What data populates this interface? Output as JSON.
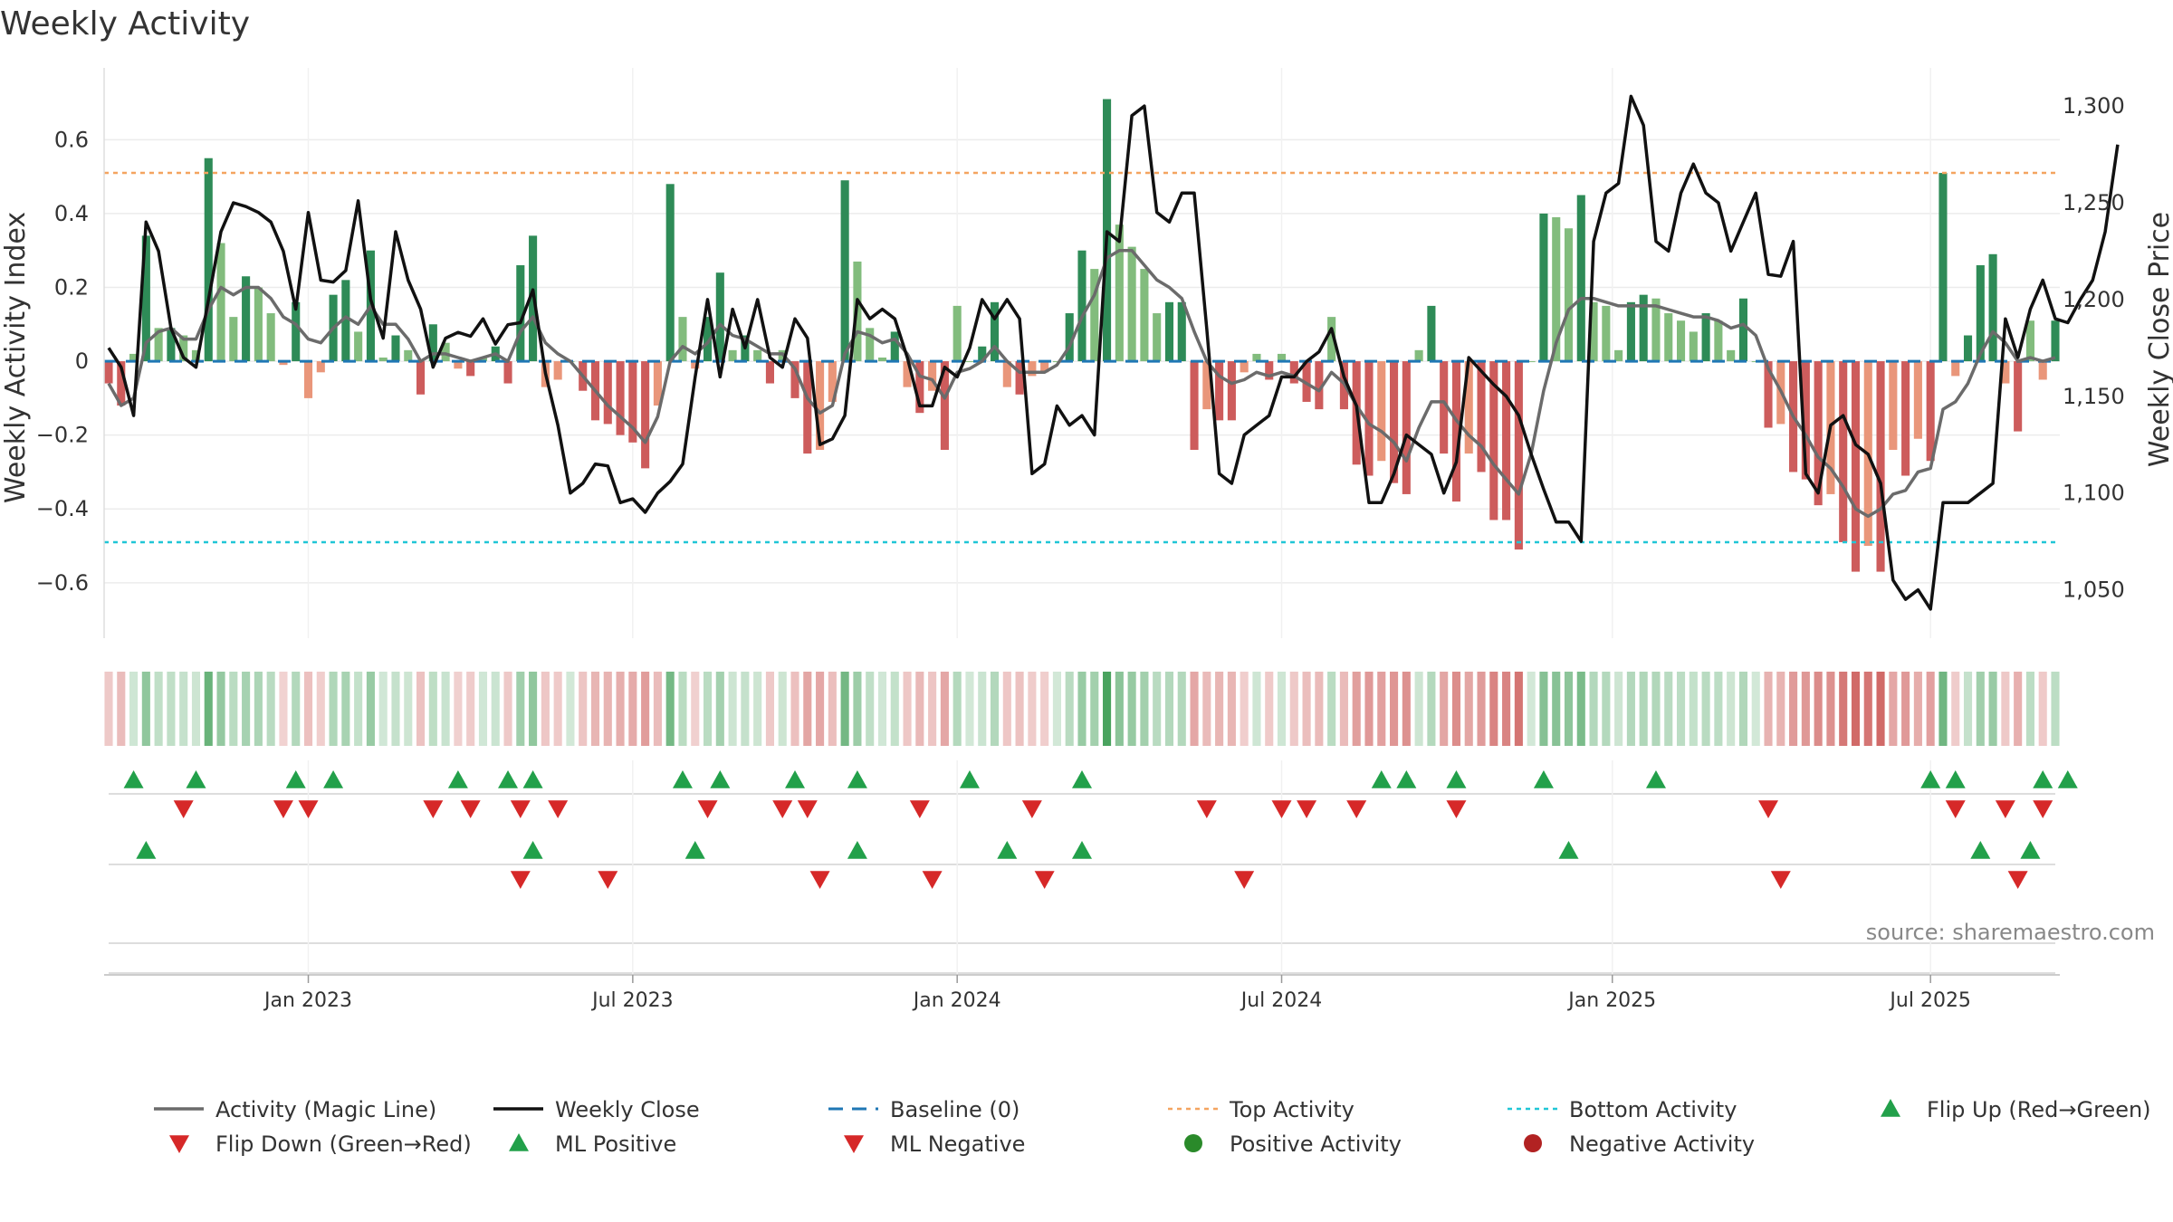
{
  "chart_data": {
    "type": "bar",
    "title": "Weekly Activity",
    "ylabel_left": "Weekly Activity Index",
    "ylabel_right": "Weekly Close Price",
    "source": "source: sharemaestro.com",
    "left_ylim": [
      -0.75,
      0.77
    ],
    "right_ylim": [
      1025,
      1315
    ],
    "left_ticks": [
      {
        "value": 0.6,
        "label": "0.6"
      },
      {
        "value": 0.4,
        "label": "0.4"
      },
      {
        "value": 0.2,
        "label": "0.2"
      },
      {
        "value": 0,
        "label": "0"
      },
      {
        "value": -0.2,
        "label": "−0.2"
      },
      {
        "value": -0.4,
        "label": "−0.4"
      },
      {
        "value": -0.6,
        "label": "−0.6"
      }
    ],
    "right_ticks": [
      {
        "value": 1300,
        "label": "1,300"
      },
      {
        "value": 1250,
        "label": "1,250"
      },
      {
        "value": 1200,
        "label": "1,200"
      },
      {
        "value": 1150,
        "label": "1,150"
      },
      {
        "value": 1100,
        "label": "1,100"
      },
      {
        "value": 1050,
        "label": "1,050"
      }
    ],
    "x_ticks": [
      {
        "index": 16,
        "label": "Jan 2023"
      },
      {
        "index": 42,
        "label": "Jul 2023"
      },
      {
        "index": 68,
        "label": "Jan 2024"
      },
      {
        "index": 94,
        "label": "Jul 2024"
      },
      {
        "index": 120.5,
        "label": "Jan 2025"
      },
      {
        "index": 146,
        "label": "Jul 2025"
      }
    ],
    "n_weeks": 157,
    "top_activity": 0.51,
    "bottom_activity": -0.49,
    "baseline": 0,
    "activity": [
      -0.06,
      -0.12,
      0.02,
      0.34,
      0.09,
      0.09,
      0.07,
      0.03,
      0.55,
      0.32,
      0.12,
      0.23,
      0.2,
      0.13,
      -0.01,
      0.16,
      -0.1,
      -0.03,
      0.18,
      0.22,
      0.08,
      0.3,
      0.01,
      0.07,
      0.03,
      -0.09,
      0.1,
      0.05,
      -0.02,
      -0.04,
      0.01,
      0.04,
      -0.06,
      0.26,
      0.34,
      -0.07,
      -0.05,
      0.0,
      -0.08,
      -0.16,
      -0.17,
      -0.2,
      -0.22,
      -0.29,
      -0.12,
      0.48,
      0.12,
      -0.02,
      0.12,
      0.24,
      0.03,
      0.07,
      0.03,
      -0.06,
      0.03,
      -0.1,
      -0.25,
      -0.24,
      -0.11,
      0.49,
      0.27,
      0.09,
      0.01,
      0.08,
      -0.07,
      -0.14,
      -0.08,
      -0.24,
      0.15,
      0.0,
      0.04,
      0.16,
      -0.07,
      -0.09,
      -0.04,
      -0.03,
      0.0,
      0.13,
      0.3,
      0.25,
      0.71,
      0.37,
      0.31,
      0.25,
      0.13,
      0.16,
      0.16,
      -0.24,
      -0.13,
      -0.16,
      -0.16,
      -0.03,
      0.02,
      -0.05,
      0.02,
      -0.06,
      -0.11,
      -0.13,
      0.12,
      -0.13,
      -0.28,
      -0.31,
      -0.27,
      -0.33,
      -0.36,
      0.03,
      0.15,
      -0.25,
      -0.38,
      -0.25,
      -0.3,
      -0.43,
      -0.43,
      -0.51,
      0.0,
      0.4,
      0.39,
      0.36,
      0.45,
      0.16,
      0.15,
      0.03,
      0.16,
      0.18,
      0.17,
      0.13,
      0.11,
      0.08,
      0.13,
      0.11,
      0.03,
      0.17,
      0.0,
      -0.18,
      -0.17,
      -0.3,
      -0.32,
      -0.39,
      -0.36,
      -0.49,
      -0.57,
      -0.5,
      -0.57,
      -0.24,
      -0.31,
      -0.21,
      -0.27,
      0.51,
      -0.04,
      0.07,
      0.26,
      0.29,
      -0.06,
      -0.19,
      0.11,
      -0.05,
      0.11
    ],
    "magic_line": [
      -0.06,
      -0.12,
      -0.1,
      0.05,
      0.08,
      0.09,
      0.06,
      0.06,
      0.14,
      0.2,
      0.18,
      0.2,
      0.2,
      0.17,
      0.12,
      0.1,
      0.06,
      0.05,
      0.09,
      0.12,
      0.1,
      0.15,
      0.1,
      0.1,
      0.06,
      0.0,
      0.02,
      0.02,
      0.01,
      0.0,
      0.01,
      0.02,
      0.0,
      0.08,
      0.12,
      0.05,
      0.02,
      0.0,
      -0.04,
      -0.08,
      -0.12,
      -0.15,
      -0.18,
      -0.22,
      -0.15,
      0.0,
      0.04,
      0.02,
      0.05,
      0.1,
      0.07,
      0.06,
      0.04,
      0.02,
      0.02,
      -0.02,
      -0.1,
      -0.14,
      -0.12,
      0.02,
      0.08,
      0.07,
      0.05,
      0.06,
      0.02,
      -0.04,
      -0.05,
      -0.1,
      -0.03,
      -0.02,
      0.0,
      0.04,
      0.0,
      -0.03,
      -0.03,
      -0.03,
      -0.01,
      0.04,
      0.12,
      0.18,
      0.28,
      0.3,
      0.3,
      0.26,
      0.22,
      0.2,
      0.17,
      0.08,
      0.0,
      -0.04,
      -0.06,
      -0.05,
      -0.03,
      -0.04,
      -0.03,
      -0.04,
      -0.06,
      -0.08,
      -0.03,
      -0.06,
      -0.12,
      -0.17,
      -0.19,
      -0.22,
      -0.27,
      -0.18,
      -0.11,
      -0.11,
      -0.16,
      -0.2,
      -0.23,
      -0.28,
      -0.32,
      -0.36,
      -0.25,
      -0.08,
      0.05,
      0.14,
      0.17,
      0.17,
      0.16,
      0.15,
      0.15,
      0.15,
      0.15,
      0.14,
      0.13,
      0.12,
      0.12,
      0.11,
      0.09,
      0.1,
      0.07,
      -0.02,
      -0.08,
      -0.15,
      -0.2,
      -0.26,
      -0.29,
      -0.34,
      -0.4,
      -0.42,
      -0.4,
      -0.36,
      -0.35,
      -0.3,
      -0.29,
      -0.13,
      -0.11,
      -0.06,
      0.02,
      0.08,
      0.05,
      0.0,
      0.01,
      0.0,
      0.01
    ],
    "weekly_close": [
      1175,
      1165,
      1140,
      1240,
      1225,
      1185,
      1170,
      1165,
      1200,
      1235,
      1250,
      1248,
      1245,
      1240,
      1225,
      1195,
      1245,
      1210,
      1209,
      1215,
      1251,
      1200,
      1180,
      1235,
      1210,
      1195,
      1165,
      1180,
      1183,
      1181,
      1190,
      1177,
      1187,
      1188,
      1205,
      1162,
      1135,
      1100,
      1105,
      1115,
      1114,
      1095,
      1097,
      1090,
      1100,
      1106,
      1115,
      1160,
      1200,
      1160,
      1195,
      1175,
      1200,
      1170,
      1165,
      1190,
      1180,
      1125,
      1128,
      1140,
      1200,
      1190,
      1195,
      1190,
      1170,
      1145,
      1145,
      1165,
      1160,
      1175,
      1200,
      1190,
      1200,
      1190,
      1110,
      1115,
      1145,
      1135,
      1140,
      1130,
      1235,
      1230,
      1295,
      1300,
      1245,
      1240,
      1255,
      1255,
      1185,
      1110,
      1105,
      1130,
      1135,
      1140,
      1160,
      1160,
      1168,
      1173,
      1185,
      1160,
      1145,
      1095,
      1095,
      1110,
      1130,
      1125,
      1120,
      1100,
      1116,
      1170,
      1163,
      1156,
      1150,
      1140,
      1120,
      1102,
      1085,
      1085,
      1075,
      1230,
      1255,
      1260,
      1305,
      1290,
      1230,
      1225,
      1255,
      1270,
      1255,
      1250,
      1225,
      1240,
      1255,
      1213,
      1212,
      1230,
      1110,
      1100,
      1135,
      1140,
      1125,
      1120,
      1105,
      1055,
      1045,
      1050,
      1040,
      1095,
      1095,
      1095,
      1100,
      1105,
      1190,
      1170,
      1195,
      1210,
      1190,
      1188,
      1200,
      1210,
      1235,
      1280
    ],
    "flip_up": [
      2,
      7,
      15,
      18,
      28,
      32,
      34,
      46,
      49,
      55,
      60,
      69,
      78,
      102,
      104,
      108,
      115,
      124,
      146,
      148,
      155,
      157
    ],
    "flip_down": [
      6,
      14,
      16,
      26,
      29,
      33,
      36,
      48,
      54,
      56,
      65,
      74,
      88,
      94,
      96,
      100,
      108,
      133,
      148,
      152,
      155
    ],
    "ml_positive": [
      3,
      34,
      47,
      60,
      72,
      78,
      117,
      150,
      154
    ],
    "ml_negative": [
      33,
      40,
      57,
      66,
      75,
      91,
      134,
      153
    ],
    "colors": {
      "strong_green": "#2e8b57",
      "light_green": "#82bc7d",
      "strong_red": "#cd5c5c",
      "light_red": "#e9967a",
      "magic_line": "#6b6b6b",
      "close_line": "#111111",
      "baseline": "#1f77b4",
      "top_activity": "#f4a460",
      "bottom_activity": "#20c6d6",
      "marker_green": "#22a04a",
      "marker_red": "#d62828",
      "dot_green": "#2a8a2a",
      "dot_red": "#b22222"
    },
    "legend": [
      {
        "label": "Activity (Magic Line)",
        "kind": "line",
        "color": "#6b6b6b"
      },
      {
        "label": "Weekly Close",
        "kind": "line",
        "color": "#111111"
      },
      {
        "label": "Baseline (0)",
        "kind": "dash",
        "color": "#1f77b4"
      },
      {
        "label": "Top Activity",
        "kind": "dot-line",
        "color": "#f4a460"
      },
      {
        "label": "Bottom Activity",
        "kind": "dot-line",
        "color": "#20c6d6"
      },
      {
        "label": "Flip Up (Red→Green)",
        "kind": "tri-up",
        "color": "#22a04a"
      },
      {
        "label": "Flip Down (Green→Red)",
        "kind": "tri-down",
        "color": "#d62828"
      },
      {
        "label": "ML Positive",
        "kind": "tri-up",
        "color": "#22a04a"
      },
      {
        "label": "ML Negative",
        "kind": "tri-down",
        "color": "#d62828"
      },
      {
        "label": "Positive Activity",
        "kind": "circle",
        "color": "#2a8a2a"
      },
      {
        "label": "Negative Activity",
        "kind": "circle",
        "color": "#b22222"
      }
    ]
  }
}
